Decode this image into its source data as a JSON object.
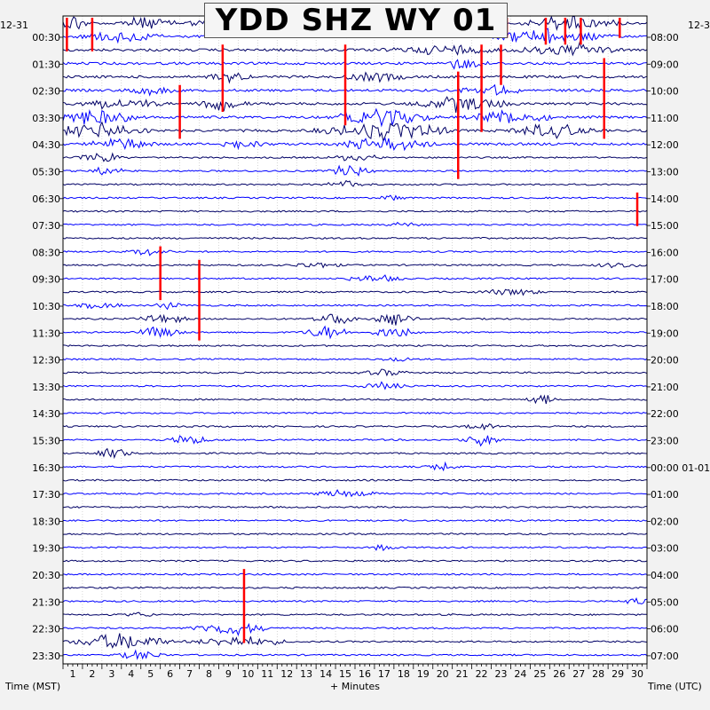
{
  "chart_data": {
    "type": "line",
    "title": "YDD SHZ WY 01",
    "left_corner_label": "12-31",
    "right_corner_label": "12-3",
    "left_axis_labels": [
      "00:30",
      "01:30",
      "02:30",
      "03:30",
      "04:30",
      "05:30",
      "06:30",
      "07:30",
      "08:30",
      "09:30",
      "10:30",
      "11:30",
      "12:30",
      "13:30",
      "14:30",
      "15:30",
      "16:30",
      "17:30",
      "18:30",
      "19:30",
      "20:30",
      "21:30",
      "22:30",
      "23:30"
    ],
    "right_axis_labels": [
      "08:00",
      "09:00",
      "10:00",
      "11:00",
      "12:00",
      "13:00",
      "14:00",
      "15:00",
      "16:00",
      "17:00",
      "18:00",
      "19:00",
      "20:00",
      "21:00",
      "22:00",
      "23:00",
      "00:00 01-01",
      "01:00",
      "02:00",
      "03:00",
      "04:00",
      "05:00",
      "06:00",
      "07:00"
    ],
    "x_tick_labels": [
      "1",
      "2",
      "3",
      "4",
      "5",
      "6",
      "7",
      "8",
      "9",
      "10",
      "11",
      "12",
      "13",
      "14",
      "15",
      "16",
      "17",
      "18",
      "19",
      "20",
      "21",
      "22",
      "23",
      "24",
      "25",
      "26",
      "27",
      "28",
      "29",
      "30"
    ],
    "xlim": [
      0,
      30
    ],
    "xlabel": "+ Minutes",
    "left_axis_title": "Time (MST)",
    "right_axis_title": "Time (UTC)",
    "trace_count": 48,
    "trace_colors": [
      "#000066",
      "#0000ff"
    ],
    "clip_color": "#ff0000",
    "events": [
      {
        "trace": 0,
        "minute": 0.6,
        "amplitude": 4.0,
        "duration": 1.5
      },
      {
        "trace": 0,
        "minute": 4.0,
        "amplitude": 2.5,
        "duration": 4.0
      },
      {
        "trace": 0,
        "minute": 8.5,
        "amplitude": 2.0,
        "duration": 6.0
      },
      {
        "trace": 0,
        "minute": 17.0,
        "amplitude": 2.5,
        "duration": 8.0
      },
      {
        "trace": 0,
        "minute": 26.0,
        "amplitude": 3.5,
        "duration": 6.0
      },
      {
        "trace": 1,
        "minute": 3.0,
        "amplitude": 2.5,
        "duration": 5.0
      },
      {
        "trace": 1,
        "minute": 25.0,
        "amplitude": 3.5,
        "duration": 7.0
      },
      {
        "trace": 2,
        "minute": 20.0,
        "amplitude": 2.0,
        "duration": 8.0
      },
      {
        "trace": 2,
        "minute": 26.0,
        "amplitude": 3.0,
        "duration": 6.0
      },
      {
        "trace": 3,
        "minute": 20.5,
        "amplitude": 2.5,
        "duration": 3.0
      },
      {
        "trace": 4,
        "minute": 8.5,
        "amplitude": 2.0,
        "duration": 3.0
      },
      {
        "trace": 4,
        "minute": 16.0,
        "amplitude": 2.0,
        "duration": 4.0
      },
      {
        "trace": 5,
        "minute": 4.5,
        "amplitude": 2.0,
        "duration": 3.0
      },
      {
        "trace": 5,
        "minute": 22.0,
        "amplitude": 2.0,
        "duration": 4.0
      },
      {
        "trace": 6,
        "minute": 3.0,
        "amplitude": 2.5,
        "duration": 5.0
      },
      {
        "trace": 6,
        "minute": 8.2,
        "amplitude": 3.0,
        "duration": 3.0
      },
      {
        "trace": 6,
        "minute": 20.5,
        "amplitude": 3.5,
        "duration": 6.0
      },
      {
        "trace": 7,
        "minute": 1.5,
        "amplitude": 3.5,
        "duration": 6.0
      },
      {
        "trace": 7,
        "minute": 16.5,
        "amplitude": 4.0,
        "duration": 6.0
      },
      {
        "trace": 7,
        "minute": 23.0,
        "amplitude": 3.5,
        "duration": 5.0
      },
      {
        "trace": 8,
        "minute": 2.0,
        "amplitude": 3.5,
        "duration": 6.0
      },
      {
        "trace": 8,
        "minute": 16.5,
        "amplitude": 4.0,
        "duration": 8.0
      },
      {
        "trace": 8,
        "minute": 25.0,
        "amplitude": 3.0,
        "duration": 5.0
      },
      {
        "trace": 9,
        "minute": 3.0,
        "amplitude": 3.0,
        "duration": 4.0
      },
      {
        "trace": 9,
        "minute": 9.0,
        "amplitude": 2.0,
        "duration": 3.0
      },
      {
        "trace": 9,
        "minute": 16.5,
        "amplitude": 3.0,
        "duration": 6.0
      },
      {
        "trace": 10,
        "minute": 2.0,
        "amplitude": 2.0,
        "duration": 3.0
      },
      {
        "trace": 10,
        "minute": 15.0,
        "amplitude": 2.0,
        "duration": 3.0
      },
      {
        "trace": 11,
        "minute": 2.3,
        "amplitude": 2.0,
        "duration": 2.0
      },
      {
        "trace": 11,
        "minute": 14.8,
        "amplitude": 3.0,
        "duration": 3.0
      },
      {
        "trace": 12,
        "minute": 14.5,
        "amplitude": 1.5,
        "duration": 3.0
      },
      {
        "trace": 13,
        "minute": 17.0,
        "amplitude": 1.2,
        "duration": 2.0
      },
      {
        "trace": 15,
        "minute": 17.5,
        "amplitude": 1.2,
        "duration": 2.0
      },
      {
        "trace": 17,
        "minute": 4.5,
        "amplitude": 1.5,
        "duration": 3.0
      },
      {
        "trace": 18,
        "minute": 13.0,
        "amplitude": 1.5,
        "duration": 3.0
      },
      {
        "trace": 18,
        "minute": 28.5,
        "amplitude": 1.5,
        "duration": 3.0
      },
      {
        "trace": 19,
        "minute": 16.0,
        "amplitude": 1.5,
        "duration": 4.0
      },
      {
        "trace": 20,
        "minute": 23.0,
        "amplitude": 1.5,
        "duration": 4.0
      },
      {
        "trace": 21,
        "minute": 2.0,
        "amplitude": 1.5,
        "duration": 3.0
      },
      {
        "trace": 21,
        "minute": 5.5,
        "amplitude": 1.5,
        "duration": 2.0
      },
      {
        "trace": 22,
        "minute": 5.0,
        "amplitude": 3.0,
        "duration": 3.0
      },
      {
        "trace": 22,
        "minute": 14.0,
        "amplitude": 2.5,
        "duration": 3.0
      },
      {
        "trace": 22,
        "minute": 17.0,
        "amplitude": 2.5,
        "duration": 3.0
      },
      {
        "trace": 23,
        "minute": 5.0,
        "amplitude": 2.5,
        "duration": 3.0
      },
      {
        "trace": 23,
        "minute": 13.5,
        "amplitude": 3.0,
        "duration": 3.0
      },
      {
        "trace": 23,
        "minute": 17.0,
        "amplitude": 3.0,
        "duration": 3.0
      },
      {
        "trace": 25,
        "minute": 17.0,
        "amplitude": 1.2,
        "duration": 2.0
      },
      {
        "trace": 26,
        "minute": 16.5,
        "amplitude": 1.5,
        "duration": 3.0
      },
      {
        "trace": 27,
        "minute": 16.5,
        "amplitude": 1.5,
        "duration": 3.0
      },
      {
        "trace": 28,
        "minute": 24.5,
        "amplitude": 2.5,
        "duration": 2.0
      },
      {
        "trace": 30,
        "minute": 21.5,
        "amplitude": 2.0,
        "duration": 2.0
      },
      {
        "trace": 31,
        "minute": 6.5,
        "amplitude": 2.5,
        "duration": 2.5
      },
      {
        "trace": 31,
        "minute": 21.5,
        "amplitude": 2.5,
        "duration": 2.5
      },
      {
        "trace": 32,
        "minute": 2.5,
        "amplitude": 2.5,
        "duration": 2.5
      },
      {
        "trace": 33,
        "minute": 19.5,
        "amplitude": 2.0,
        "duration": 2.0
      },
      {
        "trace": 35,
        "minute": 14.5,
        "amplitude": 1.5,
        "duration": 4.0
      },
      {
        "trace": 39,
        "minute": 16.5,
        "amplitude": 1.5,
        "duration": 1.5
      },
      {
        "trace": 43,
        "minute": 29.5,
        "amplitude": 1.2,
        "duration": 2.0
      },
      {
        "trace": 44,
        "minute": 4.0,
        "amplitude": 1.2,
        "duration": 2.0
      },
      {
        "trace": 45,
        "minute": 8.5,
        "amplitude": 3.0,
        "duration": 5.0
      },
      {
        "trace": 46,
        "minute": 3.0,
        "amplitude": 4.0,
        "duration": 6.0
      },
      {
        "trace": 46,
        "minute": 9.0,
        "amplitude": 2.5,
        "duration": 6.0
      },
      {
        "trace": 47,
        "minute": 4.0,
        "amplitude": 2.0,
        "duration": 3.0
      }
    ],
    "clipped_spikes": [
      {
        "trace": 0,
        "minute": 0.2,
        "length_traces": 2.5
      },
      {
        "trace": 0,
        "minute": 1.5,
        "length_traces": 2.5
      },
      {
        "trace": 0,
        "minute": 22.8,
        "length_traces": 1.5
      },
      {
        "trace": 0,
        "minute": 24.8,
        "length_traces": 2.0
      },
      {
        "trace": 0,
        "minute": 25.8,
        "length_traces": 2.0
      },
      {
        "trace": 0,
        "minute": 26.6,
        "length_traces": 2.0
      },
      {
        "trace": 0,
        "minute": 28.6,
        "length_traces": 1.5
      },
      {
        "trace": 2,
        "minute": 8.2,
        "length_traces": 5.0
      },
      {
        "trace": 2,
        "minute": 14.5,
        "length_traces": 6.0
      },
      {
        "trace": 2,
        "minute": 21.5,
        "length_traces": 6.5
      },
      {
        "trace": 2,
        "minute": 22.5,
        "length_traces": 3.0
      },
      {
        "trace": 3,
        "minute": 27.8,
        "length_traces": 6.0
      },
      {
        "trace": 4,
        "minute": 20.3,
        "length_traces": 8.0
      },
      {
        "trace": 5,
        "minute": 6.0,
        "length_traces": 4.0
      },
      {
        "trace": 13,
        "minute": 29.5,
        "length_traces": 2.5
      },
      {
        "trace": 17,
        "minute": 5.0,
        "length_traces": 4.0
      },
      {
        "trace": 18,
        "minute": 7.0,
        "length_traces": 6.0
      },
      {
        "trace": 41,
        "minute": 9.3,
        "length_traces": 5.5
      }
    ]
  }
}
